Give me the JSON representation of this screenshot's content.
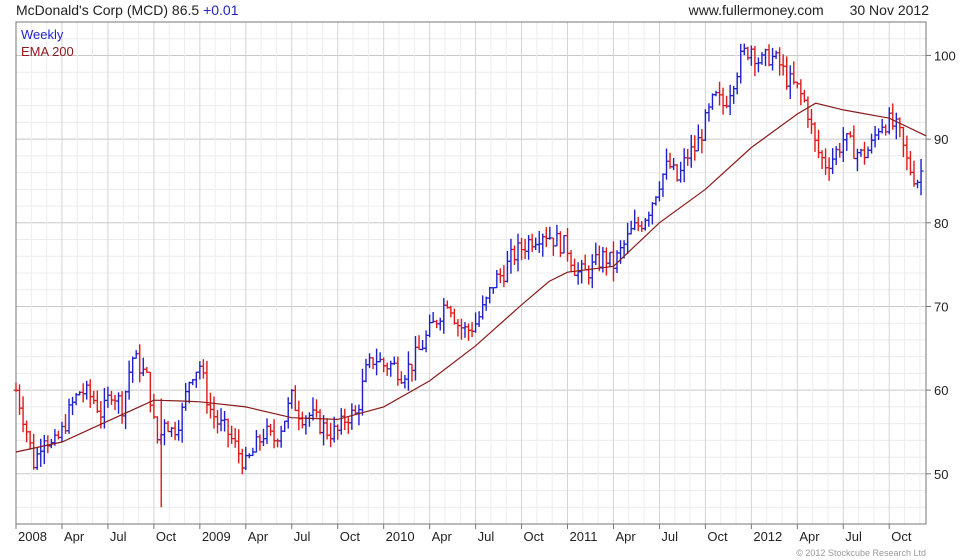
{
  "header": {
    "company": "McDonald's Corp (MCD)",
    "price": "86.5",
    "change": "+0.01",
    "website": "www.fullermoney.com",
    "date": "30 Nov 2012"
  },
  "legend": {
    "period": "Weekly",
    "ema": "EMA 200"
  },
  "credit": "© 2012 Stockcube Research Ltd",
  "colors": {
    "up": "#1f1fd2",
    "down": "#e01818",
    "ema": "#8b1a1a",
    "grid": "#dcdcdc",
    "axis": "#777777"
  },
  "chart_data": {
    "type": "line",
    "title": "McDonald's Corp (MCD)",
    "ylim": [
      44,
      104
    ],
    "y_ticks": [
      50,
      60,
      70,
      80,
      90,
      100
    ],
    "x_ticks": [
      {
        "label": "2008",
        "t": 2008.0
      },
      {
        "label": "Apr",
        "t": 2008.25
      },
      {
        "label": "Jul",
        "t": 2008.5
      },
      {
        "label": "Oct",
        "t": 2008.75
      },
      {
        "label": "2009",
        "t": 2009.0
      },
      {
        "label": "Apr",
        "t": 2009.25
      },
      {
        "label": "Jul",
        "t": 2009.5
      },
      {
        "label": "Oct",
        "t": 2009.75
      },
      {
        "label": "2010",
        "t": 2010.0
      },
      {
        "label": "Apr",
        "t": 2010.25
      },
      {
        "label": "Jul",
        "t": 2010.5
      },
      {
        "label": "Oct",
        "t": 2010.75
      },
      {
        "label": "2011",
        "t": 2011.0
      },
      {
        "label": "Apr",
        "t": 2011.25
      },
      {
        "label": "Jul",
        "t": 2011.5
      },
      {
        "label": "Oct",
        "t": 2011.75
      },
      {
        "label": "2012",
        "t": 2012.0
      },
      {
        "label": "Apr",
        "t": 2012.25
      },
      {
        "label": "Jul",
        "t": 2012.5
      },
      {
        "label": "Oct",
        "t": 2012.75
      }
    ],
    "xlim": [
      2008.0,
      2012.95
    ],
    "grid": true,
    "series": [
      {
        "name": "Weekly",
        "points": [
          [
            2008.0,
            60
          ],
          [
            2008.05,
            56
          ],
          [
            2008.1,
            51
          ],
          [
            2008.15,
            55
          ],
          [
            2008.2,
            53
          ],
          [
            2008.25,
            55
          ],
          [
            2008.3,
            58
          ],
          [
            2008.35,
            60
          ],
          [
            2008.42,
            59
          ],
          [
            2008.47,
            57
          ],
          [
            2008.52,
            60
          ],
          [
            2008.58,
            58
          ],
          [
            2008.63,
            64
          ],
          [
            2008.67,
            63
          ],
          [
            2008.72,
            61
          ],
          [
            2008.75,
            56
          ],
          [
            2008.78,
            53
          ],
          [
            2008.8,
            57
          ],
          [
            2008.85,
            55
          ],
          [
            2008.9,
            57
          ],
          [
            2008.95,
            62
          ],
          [
            2009.0,
            63
          ],
          [
            2009.05,
            58
          ],
          [
            2009.1,
            56
          ],
          [
            2009.15,
            55
          ],
          [
            2009.2,
            53
          ],
          [
            2009.25,
            51
          ],
          [
            2009.3,
            53
          ],
          [
            2009.35,
            55
          ],
          [
            2009.4,
            54
          ],
          [
            2009.45,
            56
          ],
          [
            2009.5,
            59
          ],
          [
            2009.55,
            57
          ],
          [
            2009.6,
            57
          ],
          [
            2009.65,
            56
          ],
          [
            2009.7,
            55
          ],
          [
            2009.75,
            55
          ],
          [
            2009.8,
            57
          ],
          [
            2009.85,
            57
          ],
          [
            2009.9,
            62
          ],
          [
            2009.95,
            64
          ],
          [
            2010.0,
            63
          ],
          [
            2010.05,
            63
          ],
          [
            2010.1,
            62
          ],
          [
            2010.15,
            63
          ],
          [
            2010.2,
            65
          ],
          [
            2010.25,
            67
          ],
          [
            2010.3,
            69
          ],
          [
            2010.35,
            71
          ],
          [
            2010.4,
            68
          ],
          [
            2010.45,
            67
          ],
          [
            2010.5,
            68
          ],
          [
            2010.55,
            70
          ],
          [
            2010.6,
            73
          ],
          [
            2010.65,
            74
          ],
          [
            2010.7,
            76
          ],
          [
            2010.75,
            77
          ],
          [
            2010.8,
            78
          ],
          [
            2010.87,
            79
          ],
          [
            2010.93,
            78
          ],
          [
            2011.0,
            77
          ],
          [
            2011.05,
            74
          ],
          [
            2011.1,
            74
          ],
          [
            2011.15,
            75
          ],
          [
            2011.2,
            76
          ],
          [
            2011.25,
            75
          ],
          [
            2011.3,
            77
          ],
          [
            2011.35,
            79
          ],
          [
            2011.4,
            80
          ],
          [
            2011.45,
            82
          ],
          [
            2011.5,
            85
          ],
          [
            2011.55,
            87
          ],
          [
            2011.6,
            85
          ],
          [
            2011.65,
            88
          ],
          [
            2011.7,
            89
          ],
          [
            2011.75,
            92
          ],
          [
            2011.8,
            95
          ],
          [
            2011.85,
            94
          ],
          [
            2011.9,
            97
          ],
          [
            2011.95,
            100
          ],
          [
            2012.0,
            101
          ],
          [
            2012.05,
            99
          ],
          [
            2012.1,
            100
          ],
          [
            2012.15,
            99
          ],
          [
            2012.2,
            97
          ],
          [
            2012.25,
            96
          ],
          [
            2012.3,
            94
          ],
          [
            2012.35,
            89
          ],
          [
            2012.4,
            87
          ],
          [
            2012.45,
            88
          ],
          [
            2012.5,
            90
          ],
          [
            2012.55,
            89
          ],
          [
            2012.6,
            88
          ],
          [
            2012.65,
            89
          ],
          [
            2012.7,
            92
          ],
          [
            2012.75,
            92
          ],
          [
            2012.8,
            91
          ],
          [
            2012.85,
            87
          ],
          [
            2012.9,
            85
          ],
          [
            2012.93,
            86.5
          ]
        ]
      },
      {
        "name": "EMA 200",
        "points": [
          [
            2008.0,
            52.6
          ],
          [
            2008.25,
            53.8
          ],
          [
            2008.5,
            56.3
          ],
          [
            2008.75,
            58.8
          ],
          [
            2008.9,
            58.7
          ],
          [
            2009.0,
            58.6
          ],
          [
            2009.25,
            58.0
          ],
          [
            2009.5,
            56.7
          ],
          [
            2009.75,
            56.5
          ],
          [
            2010.0,
            58.0
          ],
          [
            2010.25,
            61.1
          ],
          [
            2010.5,
            65.3
          ],
          [
            2010.75,
            70.2
          ],
          [
            2010.9,
            73.0
          ],
          [
            2011.0,
            74.1
          ],
          [
            2011.25,
            74.8
          ],
          [
            2011.5,
            80.0
          ],
          [
            2011.75,
            84.0
          ],
          [
            2012.0,
            89.0
          ],
          [
            2012.25,
            93.0
          ],
          [
            2012.35,
            94.3
          ],
          [
            2012.5,
            93.5
          ],
          [
            2012.75,
            92.5
          ],
          [
            2012.95,
            90.4
          ]
        ]
      }
    ]
  }
}
